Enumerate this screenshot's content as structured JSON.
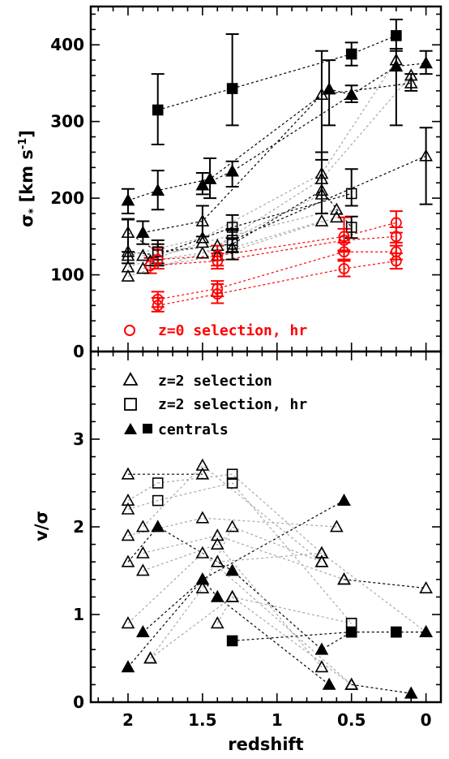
{
  "chart_data": [
    {
      "panel": "top",
      "type": "scatter",
      "xlabel": "",
      "ylabel": "σ* [km s⁻¹]",
      "ylabel_parts": [
        "σ",
        "*",
        " [km s",
        "-1",
        "]"
      ],
      "xlim": [
        2.25,
        -0.1
      ],
      "ylim": [
        0,
        450
      ],
      "yticks": [
        0,
        100,
        200,
        300,
        400
      ],
      "xticks": [
        2,
        1.5,
        1,
        0.5,
        0
      ],
      "legend": [
        {
          "label": "z=0 selection, hr",
          "marker": "circle-open",
          "color": "#ff0000"
        }
      ],
      "tracks": [
        {
          "style": "dark",
          "points": [
            {
              "x": 1.8,
              "y": 315,
              "m": "square",
              "lo": 270,
              "hi": 362
            },
            {
              "x": 1.3,
              "y": 343,
              "m": "square",
              "lo": 295,
              "hi": 414
            },
            {
              "x": 0.5,
              "y": 388,
              "m": "square",
              "lo": 373,
              "hi": 403
            },
            {
              "x": 0.2,
              "y": 412,
              "m": "square",
              "lo": 392,
              "hi": 433
            }
          ]
        },
        {
          "style": "dark",
          "points": [
            {
              "x": 2.0,
              "y": 197,
              "m": "tri",
              "lo": 180,
              "hi": 212
            },
            {
              "x": 1.8,
              "y": 210,
              "m": "tri",
              "lo": 185,
              "hi": 236
            },
            {
              "x": 1.45,
              "y": 225,
              "m": "tri",
              "lo": 200,
              "hi": 252
            },
            {
              "x": 0.65,
              "y": 342,
              "m": "tri",
              "lo": 295,
              "hi": 380
            },
            {
              "x": 0.5,
              "y": 335,
              "m": "tri",
              "lo": 325,
              "hi": 347
            }
          ]
        },
        {
          "style": "dark",
          "points": [
            {
              "x": 1.5,
              "y": 217,
              "m": "tri",
              "lo": 205,
              "hi": 233
            },
            {
              "x": 1.3,
              "y": 235,
              "m": "tri",
              "lo": 215,
              "hi": 248
            },
            {
              "x": 0.2,
              "y": 372,
              "m": "tri",
              "lo": 295,
              "hi": 395
            },
            {
              "x": 0.0,
              "y": 376,
              "m": "tri",
              "lo": 362,
              "hi": 392
            }
          ]
        },
        {
          "style": "dark",
          "points": [
            {
              "x": 1.9,
              "y": 155,
              "m": "tri",
              "lo": 140,
              "hi": 170
            },
            {
              "x": 1.5,
              "y": 170,
              "m": "tri-open",
              "lo": 150,
              "hi": 190
            },
            {
              "x": 0.7,
              "y": 335,
              "m": "tri-open",
              "lo": 250,
              "hi": 392
            },
            {
              "x": 0.1,
              "y": 350,
              "m": "tri-open",
              "lo": 340,
              "hi": 362
            }
          ]
        },
        {
          "style": "dark",
          "points": [
            {
              "x": 1.3,
              "y": 145,
              "m": "square-open",
              "lo": 130,
              "hi": 158
            },
            {
              "x": 0.0,
              "y": 255,
              "m": "tri-open",
              "lo": 192,
              "hi": 292
            }
          ]
        },
        {
          "style": "dark",
          "points": [
            {
              "x": 2.0,
              "y": 130,
              "m": "tri-open",
              "lo": 115,
              "hi": 173
            },
            {
              "x": 1.8,
              "y": 126,
              "m": "square-open",
              "lo": 115,
              "hi": 140
            },
            {
              "x": 1.3,
              "y": 162,
              "m": "square-open",
              "lo": 148,
              "hi": 178
            },
            {
              "x": 0.5,
              "y": 206,
              "m": "square-open",
              "lo": 190,
              "hi": 238
            }
          ]
        },
        {
          "style": "dark",
          "points": [
            {
              "x": 2.0,
              "y": 155,
              "m": "tri-open",
              "lo": 130,
              "hi": 172
            },
            {
              "x": 1.8,
              "y": 130,
              "m": "square-open",
              "lo": 112,
              "hi": 145
            },
            {
              "x": 1.3,
              "y": 140,
              "m": "square-open",
              "lo": 120,
              "hi": 160
            },
            {
              "x": 0.7,
              "y": 210,
              "m": "tri-open",
              "lo": 180,
              "hi": 260
            },
            {
              "x": 0.5,
              "y": 162,
              "m": "square-open",
              "lo": 148,
              "hi": 176
            }
          ]
        },
        {
          "style": "grey",
          "points": [
            {
              "x": 2.0,
              "y": 125,
              "m": "tri-open"
            },
            {
              "x": 1.5,
              "y": 148,
              "m": "tri-open"
            },
            {
              "x": 0.7,
              "y": 232,
              "m": "tri-open"
            },
            {
              "x": 0.2,
              "y": 380,
              "m": "tri-open"
            }
          ]
        },
        {
          "style": "grey",
          "points": [
            {
              "x": 1.9,
              "y": 125,
              "m": "tri-open"
            },
            {
              "x": 1.4,
              "y": 138,
              "m": "tri-open"
            },
            {
              "x": 0.7,
              "y": 225,
              "m": "tri-open"
            },
            {
              "x": 0.1,
              "y": 360,
              "m": "tri-open"
            }
          ]
        },
        {
          "style": "grey",
          "points": [
            {
              "x": 2.0,
              "y": 110,
              "m": "tri-open"
            },
            {
              "x": 1.5,
              "y": 142,
              "m": "tri-open"
            },
            {
              "x": 0.6,
              "y": 185,
              "m": "tri-open"
            }
          ]
        },
        {
          "style": "grey",
          "points": [
            {
              "x": 1.9,
              "y": 108,
              "m": "tri-open"
            },
            {
              "x": 1.4,
              "y": 125,
              "m": "tri-open"
            },
            {
              "x": 0.6,
              "y": 175,
              "m": "tri-open"
            }
          ]
        },
        {
          "style": "grey",
          "points": [
            {
              "x": 2.0,
              "y": 98,
              "m": "tri-open"
            },
            {
              "x": 1.5,
              "y": 128,
              "m": "tri-open"
            },
            {
              "x": 0.7,
              "y": 205,
              "m": "tri-open"
            }
          ]
        },
        {
          "style": "grey",
          "points": [
            {
              "x": 1.85,
              "y": 118,
              "m": "tri-open"
            },
            {
              "x": 1.3,
              "y": 135,
              "m": "tri-open"
            },
            {
              "x": 0.7,
              "y": 170,
              "m": "tri-open"
            }
          ]
        },
        {
          "style": "red",
          "points": [
            {
              "x": 1.8,
              "y": 120,
              "m": "circle-open",
              "lo": 108,
              "hi": 135
            },
            {
              "x": 1.4,
              "y": 125,
              "m": "circle-open",
              "lo": 112,
              "hi": 138
            },
            {
              "x": 0.55,
              "y": 150,
              "m": "circle-open",
              "lo": 130,
              "hi": 175
            },
            {
              "x": 0.2,
              "y": 168,
              "m": "circle-open",
              "lo": 155,
              "hi": 183
            }
          ]
        },
        {
          "style": "red",
          "points": [
            {
              "x": 1.85,
              "y": 112,
              "m": "circle-open",
              "lo": 102,
              "hi": 122
            },
            {
              "x": 1.4,
              "y": 118,
              "m": "circle-open",
              "lo": 108,
              "hi": 128
            },
            {
              "x": 0.55,
              "y": 145,
              "m": "circle-open",
              "lo": 132,
              "hi": 160
            },
            {
              "x": 0.2,
              "y": 150,
              "m": "circle-open",
              "lo": 138,
              "hi": 162
            }
          ]
        },
        {
          "style": "red",
          "points": [
            {
              "x": 1.8,
              "y": 68,
              "m": "circle-open",
              "lo": 58,
              "hi": 78
            },
            {
              "x": 1.4,
              "y": 82,
              "m": "circle-open",
              "lo": 72,
              "hi": 92
            },
            {
              "x": 0.55,
              "y": 130,
              "m": "circle-open",
              "lo": 118,
              "hi": 142
            },
            {
              "x": 0.2,
              "y": 130,
              "m": "circle-open",
              "lo": 120,
              "hi": 142
            }
          ]
        },
        {
          "style": "red",
          "points": [
            {
              "x": 1.8,
              "y": 60,
              "m": "circle-open",
              "lo": 52,
              "hi": 70
            },
            {
              "x": 1.4,
              "y": 75,
              "m": "circle-open",
              "lo": 63,
              "hi": 88
            },
            {
              "x": 0.55,
              "y": 108,
              "m": "circle-open",
              "lo": 98,
              "hi": 120
            },
            {
              "x": 0.2,
              "y": 118,
              "m": "circle-open",
              "lo": 108,
              "hi": 128
            }
          ]
        }
      ]
    },
    {
      "panel": "bottom",
      "type": "scatter",
      "xlabel": "redshift",
      "ylabel": "v/σ",
      "xlim": [
        2.25,
        -0.1
      ],
      "ylim": [
        0,
        4
      ],
      "yticks": [
        0,
        1,
        2,
        3
      ],
      "xticks": [
        2,
        1.5,
        1,
        0.5,
        0
      ],
      "xtick_labels": [
        "2",
        "1.5",
        "1",
        "0.5",
        "0"
      ],
      "legend": [
        {
          "label": "z=2 selection",
          "marker": "tri-open"
        },
        {
          "label": "z=2 selection, hr",
          "marker": "square-open"
        },
        {
          "label": "centrals",
          "marker": "tri+square-filled"
        }
      ],
      "tracks": [
        {
          "style": "dark",
          "points": [
            {
              "x": 2.0,
              "y": 2.6,
              "m": "tri-open"
            },
            {
              "x": 1.5,
              "y": 2.6,
              "m": "tri-open"
            }
          ]
        },
        {
          "style": "dark",
          "points": [
            {
              "x": 2.0,
              "y": 1.6,
              "m": "tri-open"
            },
            {
              "x": 1.8,
              "y": 2.0,
              "m": "tri"
            },
            {
              "x": 1.3,
              "y": 1.5,
              "m": "tri"
            },
            {
              "x": 0.7,
              "y": 0.6,
              "m": "tri"
            },
            {
              "x": 0.5,
              "y": 0.8,
              "m": "square"
            },
            {
              "x": 0.2,
              "y": 0.8,
              "m": "square"
            }
          ]
        },
        {
          "style": "dark",
          "points": [
            {
              "x": 1.9,
              "y": 0.8,
              "m": "tri"
            },
            {
              "x": 1.5,
              "y": 1.4,
              "m": "tri"
            },
            {
              "x": 0.55,
              "y": 2.3,
              "m": "tri"
            }
          ]
        },
        {
          "style": "dark",
          "points": [
            {
              "x": 2.0,
              "y": 0.4,
              "m": "tri"
            },
            {
              "x": 1.5,
              "y": 1.4,
              "m": "tri"
            },
            {
              "x": 1.4,
              "y": 1.2,
              "m": "tri"
            },
            {
              "x": 0.65,
              "y": 0.2,
              "m": "tri"
            }
          ]
        },
        {
          "style": "dark",
          "points": [
            {
              "x": 1.3,
              "y": 0.7,
              "m": "square"
            },
            {
              "x": 0.5,
              "y": 0.8,
              "m": "square"
            }
          ]
        },
        {
          "style": "dark",
          "points": [
            {
              "x": 0.55,
              "y": 1.4,
              "m": "tri-open"
            },
            {
              "x": 0.0,
              "y": 1.3,
              "m": "tri-open"
            }
          ]
        },
        {
          "style": "dark",
          "points": [
            {
              "x": 0.2,
              "y": 0.8,
              "m": "square"
            },
            {
              "x": 0.0,
              "y": 0.8,
              "m": "tri"
            }
          ]
        },
        {
          "style": "dark",
          "points": [
            {
              "x": 0.5,
              "y": 0.2,
              "m": "tri-open"
            },
            {
              "x": 0.1,
              "y": 0.1,
              "m": "tri"
            }
          ]
        },
        {
          "style": "grey",
          "points": [
            {
              "x": 2.0,
              "y": 2.3,
              "m": "tri-open"
            },
            {
              "x": 1.8,
              "y": 2.5,
              "m": "square-open"
            },
            {
              "x": 1.3,
              "y": 2.6,
              "m": "square-open"
            },
            {
              "x": 0.7,
              "y": 1.7,
              "m": "tri-open"
            }
          ]
        },
        {
          "style": "grey",
          "points": [
            {
              "x": 2.0,
              "y": 2.2,
              "m": "tri-open"
            },
            {
              "x": 1.8,
              "y": 2.3,
              "m": "square-open"
            },
            {
              "x": 1.3,
              "y": 2.5,
              "m": "square-open"
            },
            {
              "x": 0.5,
              "y": 0.9,
              "m": "square-open"
            }
          ]
        },
        {
          "style": "grey",
          "points": [
            {
              "x": 1.9,
              "y": 2.0,
              "m": "tri-open"
            },
            {
              "x": 1.5,
              "y": 2.7,
              "m": "tri-open"
            },
            {
              "x": 0.7,
              "y": 1.6,
              "m": "tri-open"
            }
          ]
        },
        {
          "style": "grey",
          "points": [
            {
              "x": 2.0,
              "y": 1.9,
              "m": "tri-open"
            },
            {
              "x": 1.5,
              "y": 2.1,
              "m": "tri-open"
            },
            {
              "x": 0.6,
              "y": 2.0,
              "m": "tri-open"
            }
          ]
        },
        {
          "style": "grey",
          "points": [
            {
              "x": 1.9,
              "y": 1.7,
              "m": "tri-open"
            },
            {
              "x": 1.4,
              "y": 1.9,
              "m": "tri-open"
            },
            {
              "x": 0.55,
              "y": 1.4,
              "m": "tri-open"
            }
          ]
        },
        {
          "style": "grey",
          "points": [
            {
              "x": 1.9,
              "y": 1.5,
              "m": "tri-open"
            },
            {
              "x": 1.4,
              "y": 1.8,
              "m": "tri-open"
            },
            {
              "x": 0.7,
              "y": 0.4,
              "m": "tri-open"
            }
          ]
        },
        {
          "style": "grey",
          "points": [
            {
              "x": 2.0,
              "y": 0.9,
              "m": "tri-open"
            },
            {
              "x": 1.5,
              "y": 1.7,
              "m": "tri-open"
            },
            {
              "x": 0.5,
              "y": 0.2,
              "m": "tri-open"
            }
          ]
        },
        {
          "style": "grey",
          "points": [
            {
              "x": 1.85,
              "y": 0.5,
              "m": "tri-open"
            },
            {
              "x": 1.5,
              "y": 1.3,
              "m": "tri-open"
            },
            {
              "x": 1.3,
              "y": 2.0,
              "m": "tri-open"
            },
            {
              "x": 0.7,
              "y": 1.6,
              "m": "tri-open"
            }
          ]
        },
        {
          "style": "grey",
          "points": [
            {
              "x": 1.85,
              "y": 0.5,
              "m": "tri-open"
            },
            {
              "x": 1.3,
              "y": 1.2,
              "m": "tri-open"
            },
            {
              "x": 0.5,
              "y": 0.2,
              "m": "tri-open"
            }
          ]
        },
        {
          "style": "grey",
          "points": [
            {
              "x": 1.4,
              "y": 0.9,
              "m": "tri-open"
            },
            {
              "x": 1.3,
              "y": 1.2,
              "m": "tri-open"
            },
            {
              "x": 0.5,
              "y": 0.9,
              "m": "square-open"
            }
          ]
        },
        {
          "style": "grey",
          "points": [
            {
              "x": 1.4,
              "y": 1.6,
              "m": "tri-open"
            },
            {
              "x": 0.7,
              "y": 1.7,
              "m": "tri-open"
            },
            {
              "x": 0.0,
              "y": 0.8,
              "m": "tri"
            }
          ]
        }
      ]
    }
  ]
}
